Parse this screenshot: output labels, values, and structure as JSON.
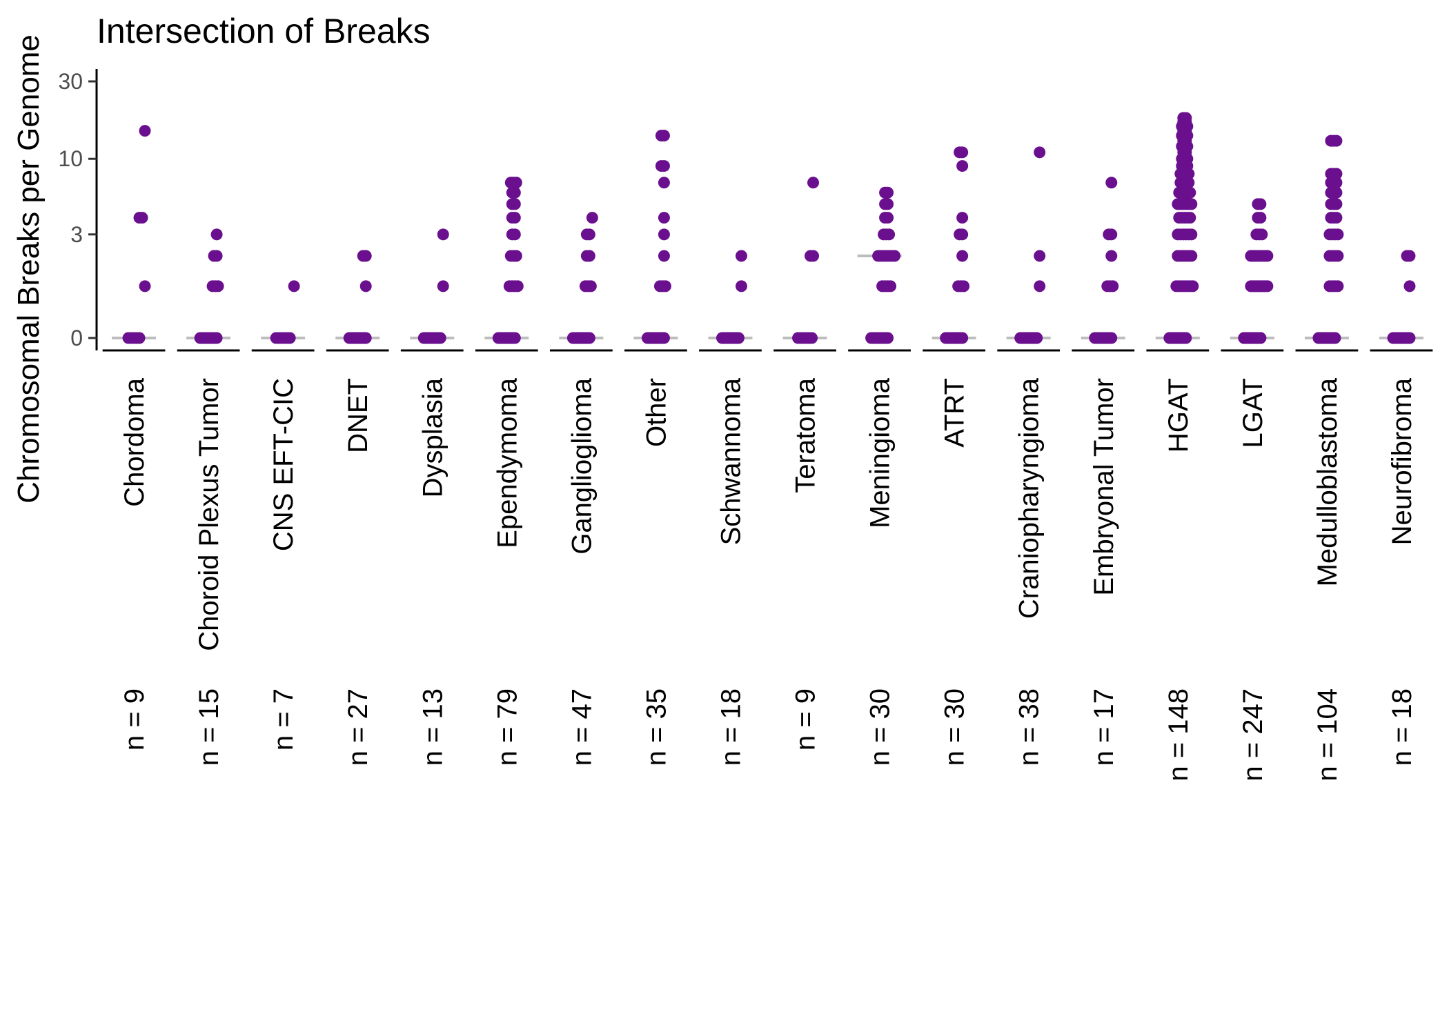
{
  "chart_data": {
    "type": "scatter",
    "title": "Intersection of Breaks",
    "ylabel": "Chromosomal Breaks per Genome",
    "xlabel": "",
    "y_scale": "pseudo-log",
    "ylim": [
      0,
      30
    ],
    "y_ticks": [
      0,
      3,
      10,
      30
    ],
    "point_color": "#6a0f8e",
    "median_color": "#bdbdbd",
    "grid": false,
    "categories": [
      {
        "name": "Chordoma",
        "n_label": "n = 9",
        "median": 0,
        "points": [
          0,
          0,
          0,
          0,
          0,
          1,
          4,
          4,
          15
        ]
      },
      {
        "name": "Choroid Plexus Tumor",
        "n_label": "n = 15",
        "median": 0,
        "points": [
          0,
          0,
          0,
          0,
          0,
          0,
          0,
          0,
          0,
          1,
          1,
          1,
          2,
          2,
          3
        ]
      },
      {
        "name": "CNS EFT-CIC",
        "n_label": "n = 7",
        "median": 0,
        "points": [
          0,
          0,
          0,
          0,
          0,
          0,
          1
        ]
      },
      {
        "name": "DNET",
        "n_label": "n = 27",
        "median": 0,
        "points": [
          0,
          0,
          0,
          0,
          0,
          0,
          0,
          0,
          0,
          0,
          0,
          0,
          0,
          0,
          0,
          0,
          0,
          0,
          0,
          0,
          0,
          0,
          0,
          0,
          1,
          2,
          2
        ]
      },
      {
        "name": "Dysplasia",
        "n_label": "n = 13",
        "median": 0,
        "points": [
          0,
          0,
          0,
          0,
          0,
          0,
          0,
          0,
          0,
          0,
          0,
          1,
          3
        ]
      },
      {
        "name": "Ependymoma",
        "n_label": "n = 79",
        "median": 0,
        "points": [
          0,
          0,
          0,
          0,
          0,
          0,
          0,
          0,
          0,
          0,
          0,
          0,
          0,
          0,
          0,
          0,
          0,
          0,
          0,
          0,
          0,
          0,
          0,
          0,
          0,
          0,
          0,
          0,
          0,
          0,
          0,
          0,
          0,
          0,
          0,
          0,
          0,
          0,
          0,
          0,
          0,
          0,
          0,
          0,
          0,
          0,
          0,
          0,
          0,
          0,
          0,
          0,
          0,
          0,
          0,
          0,
          0,
          0,
          0,
          0,
          0,
          1,
          1,
          1,
          1,
          2,
          2,
          2,
          3,
          3,
          4,
          4,
          5,
          5,
          6,
          6,
          7,
          7,
          7
        ]
      },
      {
        "name": "Ganglioglioma",
        "n_label": "n = 47",
        "median": 0,
        "points": [
          0,
          0,
          0,
          0,
          0,
          0,
          0,
          0,
          0,
          0,
          0,
          0,
          0,
          0,
          0,
          0,
          0,
          0,
          0,
          0,
          0,
          0,
          0,
          0,
          0,
          0,
          0,
          0,
          0,
          0,
          0,
          0,
          0,
          0,
          0,
          0,
          0,
          0,
          0,
          1,
          1,
          1,
          2,
          2,
          3,
          3,
          4
        ]
      },
      {
        "name": "Other",
        "n_label": "n = 35",
        "median": 0,
        "points": [
          0,
          0,
          0,
          0,
          0,
          0,
          0,
          0,
          0,
          0,
          0,
          0,
          0,
          0,
          0,
          0,
          0,
          0,
          0,
          0,
          0,
          0,
          0,
          0,
          1,
          1,
          1,
          2,
          3,
          4,
          7,
          9,
          9,
          14,
          14
        ]
      },
      {
        "name": "Schwannoma",
        "n_label": "n = 18",
        "median": 0,
        "points": [
          0,
          0,
          0,
          0,
          0,
          0,
          0,
          0,
          0,
          0,
          0,
          0,
          0,
          0,
          0,
          0,
          1,
          2
        ]
      },
      {
        "name": "Teratoma",
        "n_label": "n = 9",
        "median": 0,
        "points": [
          0,
          0,
          0,
          0,
          0,
          0,
          2,
          2,
          7
        ]
      },
      {
        "name": "Meningioma",
        "n_label": "n = 30",
        "median": 2,
        "points": [
          0,
          0,
          0,
          0,
          0,
          0,
          0,
          0,
          0,
          0,
          1,
          1,
          1,
          1,
          2,
          2,
          2,
          2,
          2,
          2,
          2,
          3,
          3,
          3,
          4,
          4,
          5,
          5,
          6,
          6
        ]
      },
      {
        "name": "ATRT",
        "n_label": "n = 30",
        "median": 0,
        "points": [
          0,
          0,
          0,
          0,
          0,
          0,
          0,
          0,
          0,
          0,
          0,
          0,
          0,
          0,
          0,
          0,
          0,
          0,
          0,
          0,
          1,
          1,
          1,
          2,
          3,
          3,
          4,
          9,
          11,
          11
        ]
      },
      {
        "name": "Craniopharyngioma",
        "n_label": "n = 38",
        "median": 0,
        "points": [
          0,
          0,
          0,
          0,
          0,
          0,
          0,
          0,
          0,
          0,
          0,
          0,
          0,
          0,
          0,
          0,
          0,
          0,
          0,
          0,
          0,
          0,
          0,
          0,
          0,
          0,
          0,
          0,
          0,
          0,
          0,
          0,
          0,
          0,
          0,
          1,
          2,
          11
        ]
      },
      {
        "name": "Embryonal Tumor",
        "n_label": "n = 17",
        "median": 0,
        "points": [
          0,
          0,
          0,
          0,
          0,
          0,
          0,
          0,
          0,
          0,
          1,
          1,
          1,
          2,
          3,
          3,
          7
        ]
      },
      {
        "name": "HGAT",
        "n_label": "n = 148",
        "median": 0,
        "points": [
          0,
          0,
          0,
          0,
          0,
          0,
          0,
          0,
          0,
          0,
          0,
          0,
          0,
          0,
          0,
          0,
          0,
          0,
          0,
          0,
          0,
          0,
          0,
          0,
          0,
          0,
          0,
          0,
          0,
          0,
          0,
          0,
          0,
          0,
          0,
          0,
          0,
          0,
          0,
          0,
          0,
          0,
          0,
          0,
          0,
          0,
          0,
          0,
          0,
          0,
          0,
          0,
          0,
          0,
          0,
          0,
          0,
          0,
          0,
          0,
          0,
          0,
          0,
          0,
          0,
          0,
          0,
          0,
          0,
          0,
          0,
          0,
          0,
          0,
          0,
          0,
          0,
          0,
          0,
          0,
          1,
          1,
          1,
          1,
          1,
          2,
          2,
          2,
          2,
          3,
          3,
          3,
          3,
          4,
          4,
          4,
          5,
          5,
          5,
          5,
          6,
          6,
          6,
          7,
          7,
          7,
          8,
          8,
          8,
          9,
          9,
          10,
          10,
          11,
          11,
          12,
          12,
          13,
          13,
          14,
          14,
          15,
          15,
          16,
          16,
          17,
          17,
          18,
          18,
          1,
          1,
          2,
          2,
          3,
          3,
          4,
          4,
          5,
          5,
          6,
          6,
          7,
          8,
          9,
          10,
          12,
          14,
          16
        ]
      },
      {
        "name": "LGAT",
        "n_label": "n = 247",
        "median": 0,
        "points": [
          0,
          0,
          0,
          0,
          0,
          0,
          0,
          0,
          0,
          0,
          0,
          0,
          0,
          0,
          0,
          0,
          0,
          0,
          0,
          0,
          0,
          0,
          0,
          0,
          0,
          0,
          0,
          0,
          0,
          0,
          0,
          0,
          0,
          0,
          0,
          0,
          0,
          0,
          0,
          0,
          0,
          0,
          0,
          0,
          0,
          0,
          0,
          0,
          0,
          0,
          0,
          0,
          0,
          0,
          0,
          0,
          0,
          0,
          0,
          0,
          0,
          0,
          0,
          0,
          0,
          0,
          0,
          0,
          0,
          0,
          0,
          0,
          0,
          0,
          0,
          0,
          0,
          0,
          0,
          0,
          0,
          0,
          0,
          0,
          0,
          0,
          0,
          0,
          0,
          0,
          0,
          0,
          0,
          0,
          0,
          0,
          0,
          0,
          0,
          0,
          0,
          0,
          0,
          0,
          0,
          0,
          0,
          0,
          0,
          0,
          0,
          0,
          0,
          0,
          0,
          0,
          0,
          0,
          0,
          0,
          0,
          0,
          0,
          0,
          0,
          0,
          0,
          0,
          0,
          0,
          0,
          0,
          0,
          0,
          0,
          0,
          0,
          0,
          0,
          0,
          0,
          0,
          0,
          0,
          0,
          0,
          0,
          0,
          0,
          0,
          0,
          0,
          0,
          0,
          0,
          0,
          0,
          0,
          0,
          0,
          0,
          0,
          0,
          0,
          0,
          0,
          0,
          0,
          0,
          0,
          0,
          0,
          0,
          0,
          0,
          0,
          0,
          0,
          0,
          0,
          0,
          0,
          0,
          0,
          0,
          0,
          0,
          0,
          0,
          0,
          0,
          0,
          0,
          0,
          0,
          0,
          0,
          0,
          0,
          0,
          0,
          0,
          0,
          0,
          0,
          0,
          0,
          0,
          0,
          0,
          0,
          0,
          0,
          0,
          1,
          1,
          1,
          1,
          1,
          1,
          1,
          1,
          1,
          1,
          1,
          2,
          2,
          2,
          2,
          2,
          2,
          2,
          2,
          3,
          3,
          3,
          4,
          4,
          5,
          5
        ]
      },
      {
        "name": "Medulloblastoma",
        "n_label": "n = 104",
        "median": 0,
        "points": [
          0,
          0,
          0,
          0,
          0,
          0,
          0,
          0,
          0,
          0,
          0,
          0,
          0,
          0,
          0,
          0,
          0,
          0,
          0,
          0,
          0,
          0,
          0,
          0,
          0,
          0,
          0,
          0,
          0,
          0,
          0,
          0,
          0,
          0,
          0,
          0,
          0,
          0,
          0,
          0,
          0,
          0,
          0,
          0,
          0,
          0,
          0,
          0,
          0,
          0,
          0,
          0,
          0,
          0,
          0,
          0,
          0,
          0,
          0,
          0,
          0,
          0,
          0,
          0,
          0,
          0,
          0,
          0,
          0,
          0,
          0,
          0,
          0,
          0,
          1,
          1,
          1,
          1,
          2,
          2,
          2,
          2,
          3,
          3,
          3,
          3,
          4,
          4,
          4,
          5,
          5,
          5,
          6,
          6,
          6,
          7,
          7,
          7,
          8,
          8,
          8,
          13,
          13,
          13
        ]
      },
      {
        "name": "Neurofibroma",
        "n_label": "n = 18",
        "median": 0,
        "points": [
          0,
          0,
          0,
          0,
          0,
          0,
          0,
          0,
          0,
          0,
          0,
          0,
          0,
          0,
          0,
          1,
          2,
          2
        ]
      }
    ]
  }
}
